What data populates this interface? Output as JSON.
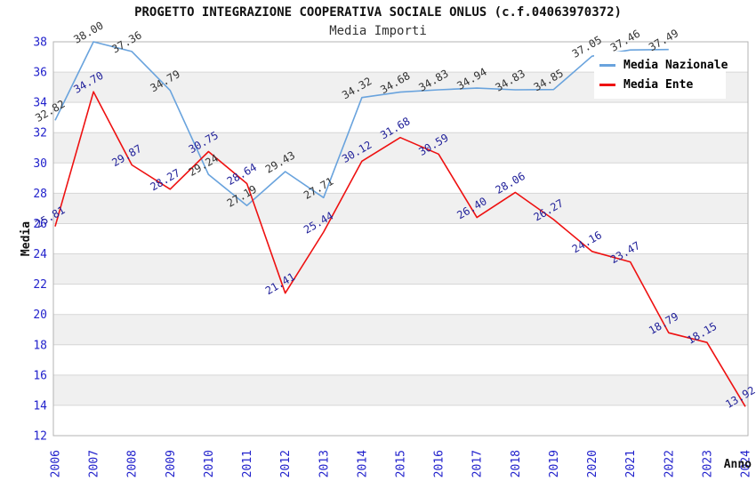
{
  "title": "PROGETTO INTEGRAZIONE COOPERATIVA SOCIALE ONLUS (c.f.04063970372)",
  "subtitle": "Media Importi",
  "axes": {
    "x_label": "Anno",
    "y_label": "Media"
  },
  "colors": {
    "tick_label": "#2222cc",
    "grid": "#d6d6d6",
    "plot_border": "#b3b3b3",
    "band_white": "#ffffff",
    "band_gray": "#f0f0f0"
  },
  "chart_data": {
    "type": "line",
    "title": "PROGETTO INTEGRAZIONE COOPERATIVA SOCIALE ONLUS (c.f.04063970372)",
    "subtitle": "Media Importi",
    "xlabel": "Anno",
    "ylabel": "Media",
    "x": [
      2006,
      2007,
      2008,
      2009,
      2010,
      2011,
      2012,
      2013,
      2014,
      2015,
      2016,
      2017,
      2018,
      2019,
      2020,
      2021,
      2022,
      2023,
      2024
    ],
    "series": [
      {
        "name": "Media Nazionale",
        "color": "#69a3dd",
        "label_color": "#333333",
        "values": [
          32.82,
          38.0,
          37.36,
          34.79,
          29.24,
          27.19,
          29.43,
          27.71,
          34.32,
          34.68,
          34.83,
          34.94,
          34.83,
          34.85,
          37.05,
          37.46,
          37.49
        ]
      },
      {
        "name": "Media Ente",
        "color": "#ee1111",
        "label_color": "#1f1f99",
        "values": [
          25.81,
          34.7,
          29.87,
          28.27,
          30.75,
          28.64,
          21.41,
          25.44,
          30.12,
          31.68,
          30.59,
          26.4,
          28.06,
          26.27,
          24.16,
          23.47,
          18.79,
          18.15,
          13.92
        ]
      }
    ],
    "ylim": [
      12,
      38
    ],
    "y_ticks": [
      38,
      36,
      34,
      32,
      30,
      28,
      26,
      24,
      22,
      20,
      18,
      16,
      14,
      12
    ],
    "grid": true,
    "legend_position": "top-right",
    "point_labels_visible": true
  }
}
